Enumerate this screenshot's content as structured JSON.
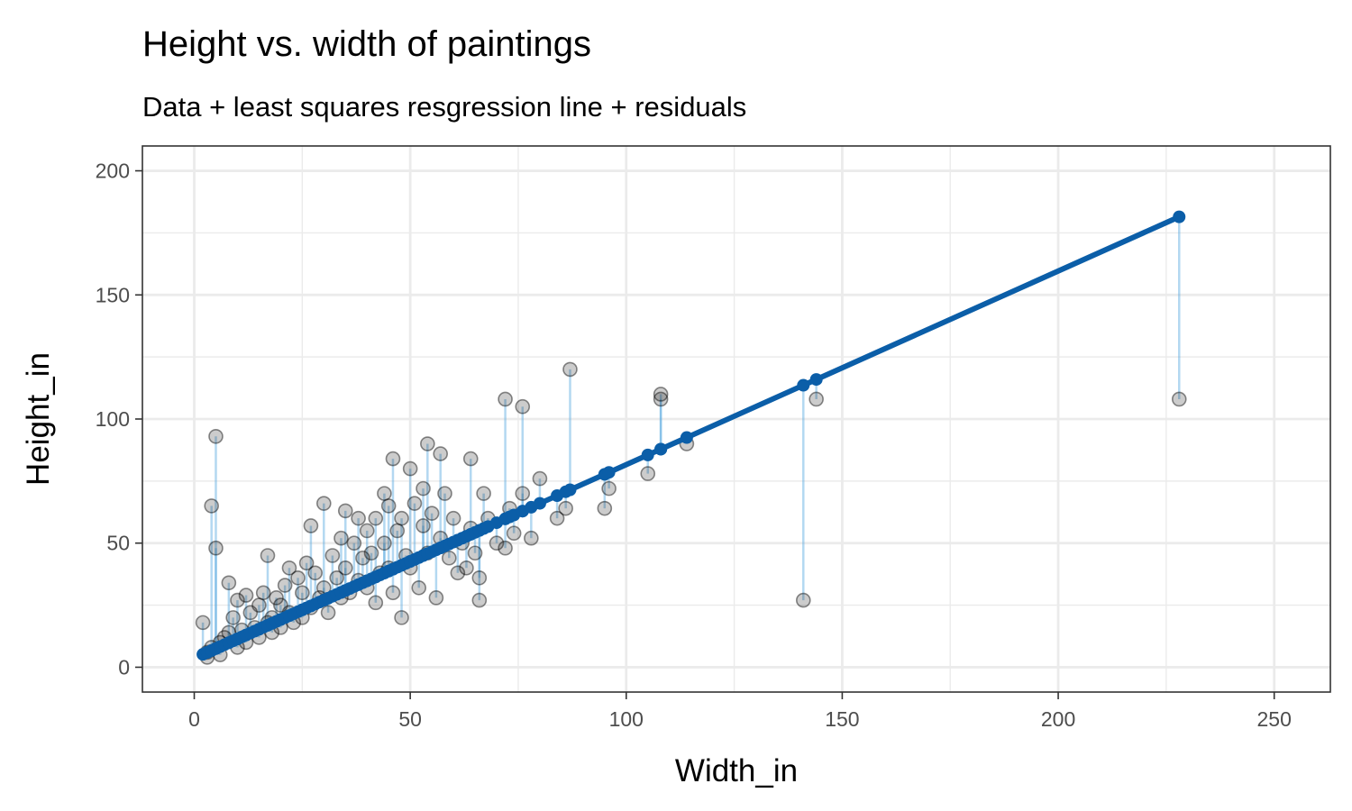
{
  "chart_data": {
    "type": "scatter",
    "title": "Height vs. width of paintings",
    "subtitle": "Data + least squares resgression line + residuals",
    "xlabel": "Width_in",
    "ylabel": "Height_in",
    "xlim": [
      -12,
      263
    ],
    "ylim": [
      -10,
      210
    ],
    "x_ticks": [
      0,
      50,
      100,
      150,
      200,
      250
    ],
    "y_ticks": [
      0,
      50,
      100,
      150,
      200
    ],
    "x_tick_labels": [
      "0",
      "50",
      "100",
      "150",
      "200",
      "250"
    ],
    "y_tick_labels": [
      "0",
      "50",
      "100",
      "150",
      "200"
    ],
    "grid": true,
    "regression": {
      "intercept": 3.62,
      "slope": 0.78,
      "x_range": [
        2,
        228
      ]
    },
    "colors": {
      "points": "#000000",
      "line": "#0b5ea8",
      "residual": "#56a8e0",
      "fitted": "#0b5ea8",
      "panel_border": "#333333",
      "grid": "#ebebeb"
    },
    "points": [
      [
        2,
        18
      ],
      [
        3,
        4
      ],
      [
        3,
        6
      ],
      [
        4,
        8
      ],
      [
        4,
        65
      ],
      [
        5,
        93
      ],
      [
        5,
        48
      ],
      [
        6,
        10
      ],
      [
        6,
        5
      ],
      [
        7,
        12
      ],
      [
        8,
        34
      ],
      [
        8,
        14
      ],
      [
        9,
        20
      ],
      [
        10,
        8
      ],
      [
        10,
        27
      ],
      [
        11,
        15
      ],
      [
        12,
        29
      ],
      [
        12,
        10
      ],
      [
        13,
        22
      ],
      [
        14,
        16
      ],
      [
        15,
        12
      ],
      [
        15,
        25
      ],
      [
        16,
        30
      ],
      [
        17,
        45
      ],
      [
        17,
        18
      ],
      [
        18,
        20
      ],
      [
        18,
        14
      ],
      [
        19,
        28
      ],
      [
        20,
        25
      ],
      [
        20,
        16
      ],
      [
        21,
        33
      ],
      [
        22,
        22
      ],
      [
        22,
        40
      ],
      [
        23,
        18
      ],
      [
        24,
        36
      ],
      [
        25,
        30
      ],
      [
        25,
        20
      ],
      [
        26,
        42
      ],
      [
        27,
        24
      ],
      [
        27,
        57
      ],
      [
        28,
        38
      ],
      [
        29,
        28
      ],
      [
        30,
        66
      ],
      [
        30,
        32
      ],
      [
        31,
        22
      ],
      [
        32,
        45
      ],
      [
        33,
        36
      ],
      [
        34,
        52
      ],
      [
        34,
        28
      ],
      [
        35,
        63
      ],
      [
        35,
        40
      ],
      [
        36,
        30
      ],
      [
        37,
        50
      ],
      [
        38,
        60
      ],
      [
        38,
        35
      ],
      [
        39,
        44
      ],
      [
        40,
        32
      ],
      [
        40,
        55
      ],
      [
        41,
        46
      ],
      [
        42,
        60
      ],
      [
        42,
        26
      ],
      [
        43,
        38
      ],
      [
        44,
        70
      ],
      [
        44,
        50
      ],
      [
        45,
        40
      ],
      [
        45,
        65
      ],
      [
        46,
        84
      ],
      [
        46,
        30
      ],
      [
        47,
        55
      ],
      [
        48,
        60
      ],
      [
        48,
        20
      ],
      [
        49,
        45
      ],
      [
        50,
        80
      ],
      [
        50,
        40
      ],
      [
        51,
        66
      ],
      [
        52,
        32
      ],
      [
        53,
        72
      ],
      [
        53,
        57
      ],
      [
        54,
        90
      ],
      [
        54,
        46
      ],
      [
        55,
        62
      ],
      [
        56,
        28
      ],
      [
        57,
        86
      ],
      [
        57,
        52
      ],
      [
        58,
        70
      ],
      [
        59,
        44
      ],
      [
        60,
        60
      ],
      [
        61,
        38
      ],
      [
        62,
        50
      ],
      [
        63,
        40
      ],
      [
        64,
        84
      ],
      [
        64,
        56
      ],
      [
        65,
        46
      ],
      [
        66,
        27
      ],
      [
        66,
        36
      ],
      [
        67,
        70
      ],
      [
        68,
        60
      ],
      [
        70,
        50
      ],
      [
        72,
        108
      ],
      [
        72,
        48
      ],
      [
        73,
        64
      ],
      [
        74,
        54
      ],
      [
        76,
        105
      ],
      [
        76,
        70
      ],
      [
        78,
        52
      ],
      [
        80,
        76
      ],
      [
        84,
        60
      ],
      [
        86,
        64
      ],
      [
        87,
        120
      ],
      [
        95,
        64
      ],
      [
        96,
        72
      ],
      [
        105,
        78
      ],
      [
        108,
        110
      ],
      [
        108,
        108
      ],
      [
        114,
        90
      ],
      [
        141,
        27
      ],
      [
        144,
        108
      ],
      [
        228,
        108
      ]
    ]
  }
}
